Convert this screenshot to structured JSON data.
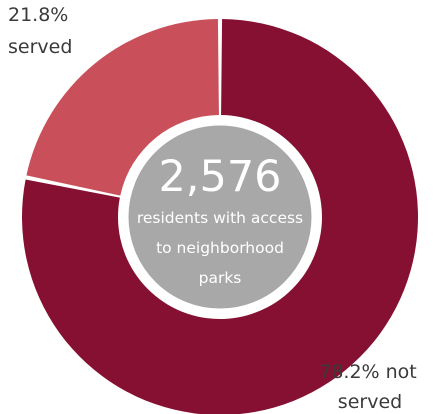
{
  "chart_data": {
    "type": "pie",
    "variant": "donut",
    "slices": [
      {
        "label": "served",
        "label_text": [
          "21.8%",
          "served"
        ],
        "value": 21.8,
        "color": "#c9505a"
      },
      {
        "label": "not served",
        "label_text": [
          "78.2% not",
          "served"
        ],
        "value": 78.2,
        "color": "#851032"
      }
    ],
    "center": {
      "value": "2,576",
      "caption": [
        "residents with access",
        "to neighborhood",
        "parks"
      ],
      "color": "#a8a8a8"
    },
    "title": "",
    "legend": "none"
  }
}
